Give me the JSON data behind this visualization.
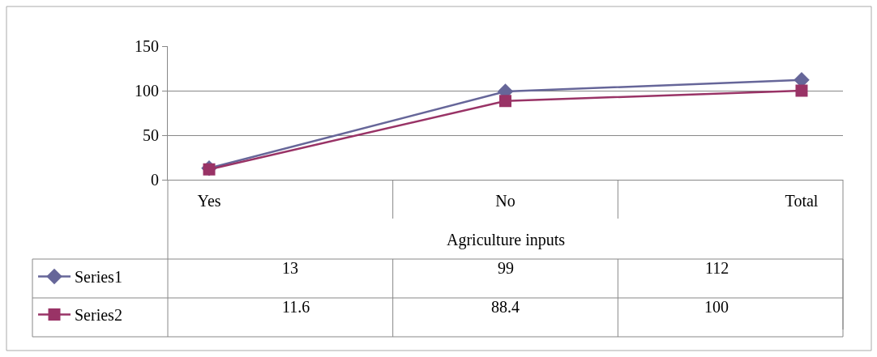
{
  "chart_data": {
    "type": "line",
    "categories": [
      "Yes",
      "No",
      "Total"
    ],
    "xlabel": "Agriculture inputs",
    "series": [
      {
        "name": "Series1",
        "color": "#666699",
        "marker": "diamond",
        "values": [
          13,
          99,
          112
        ]
      },
      {
        "name": "Series2",
        "color": "#993366",
        "marker": "square",
        "values": [
          11.6,
          88.4,
          100
        ]
      }
    ],
    "ylim": [
      0,
      150
    ],
    "yticks": [
      0,
      50,
      100,
      150
    ],
    "grid": "y",
    "legend": "bottom",
    "data_labels": true
  }
}
